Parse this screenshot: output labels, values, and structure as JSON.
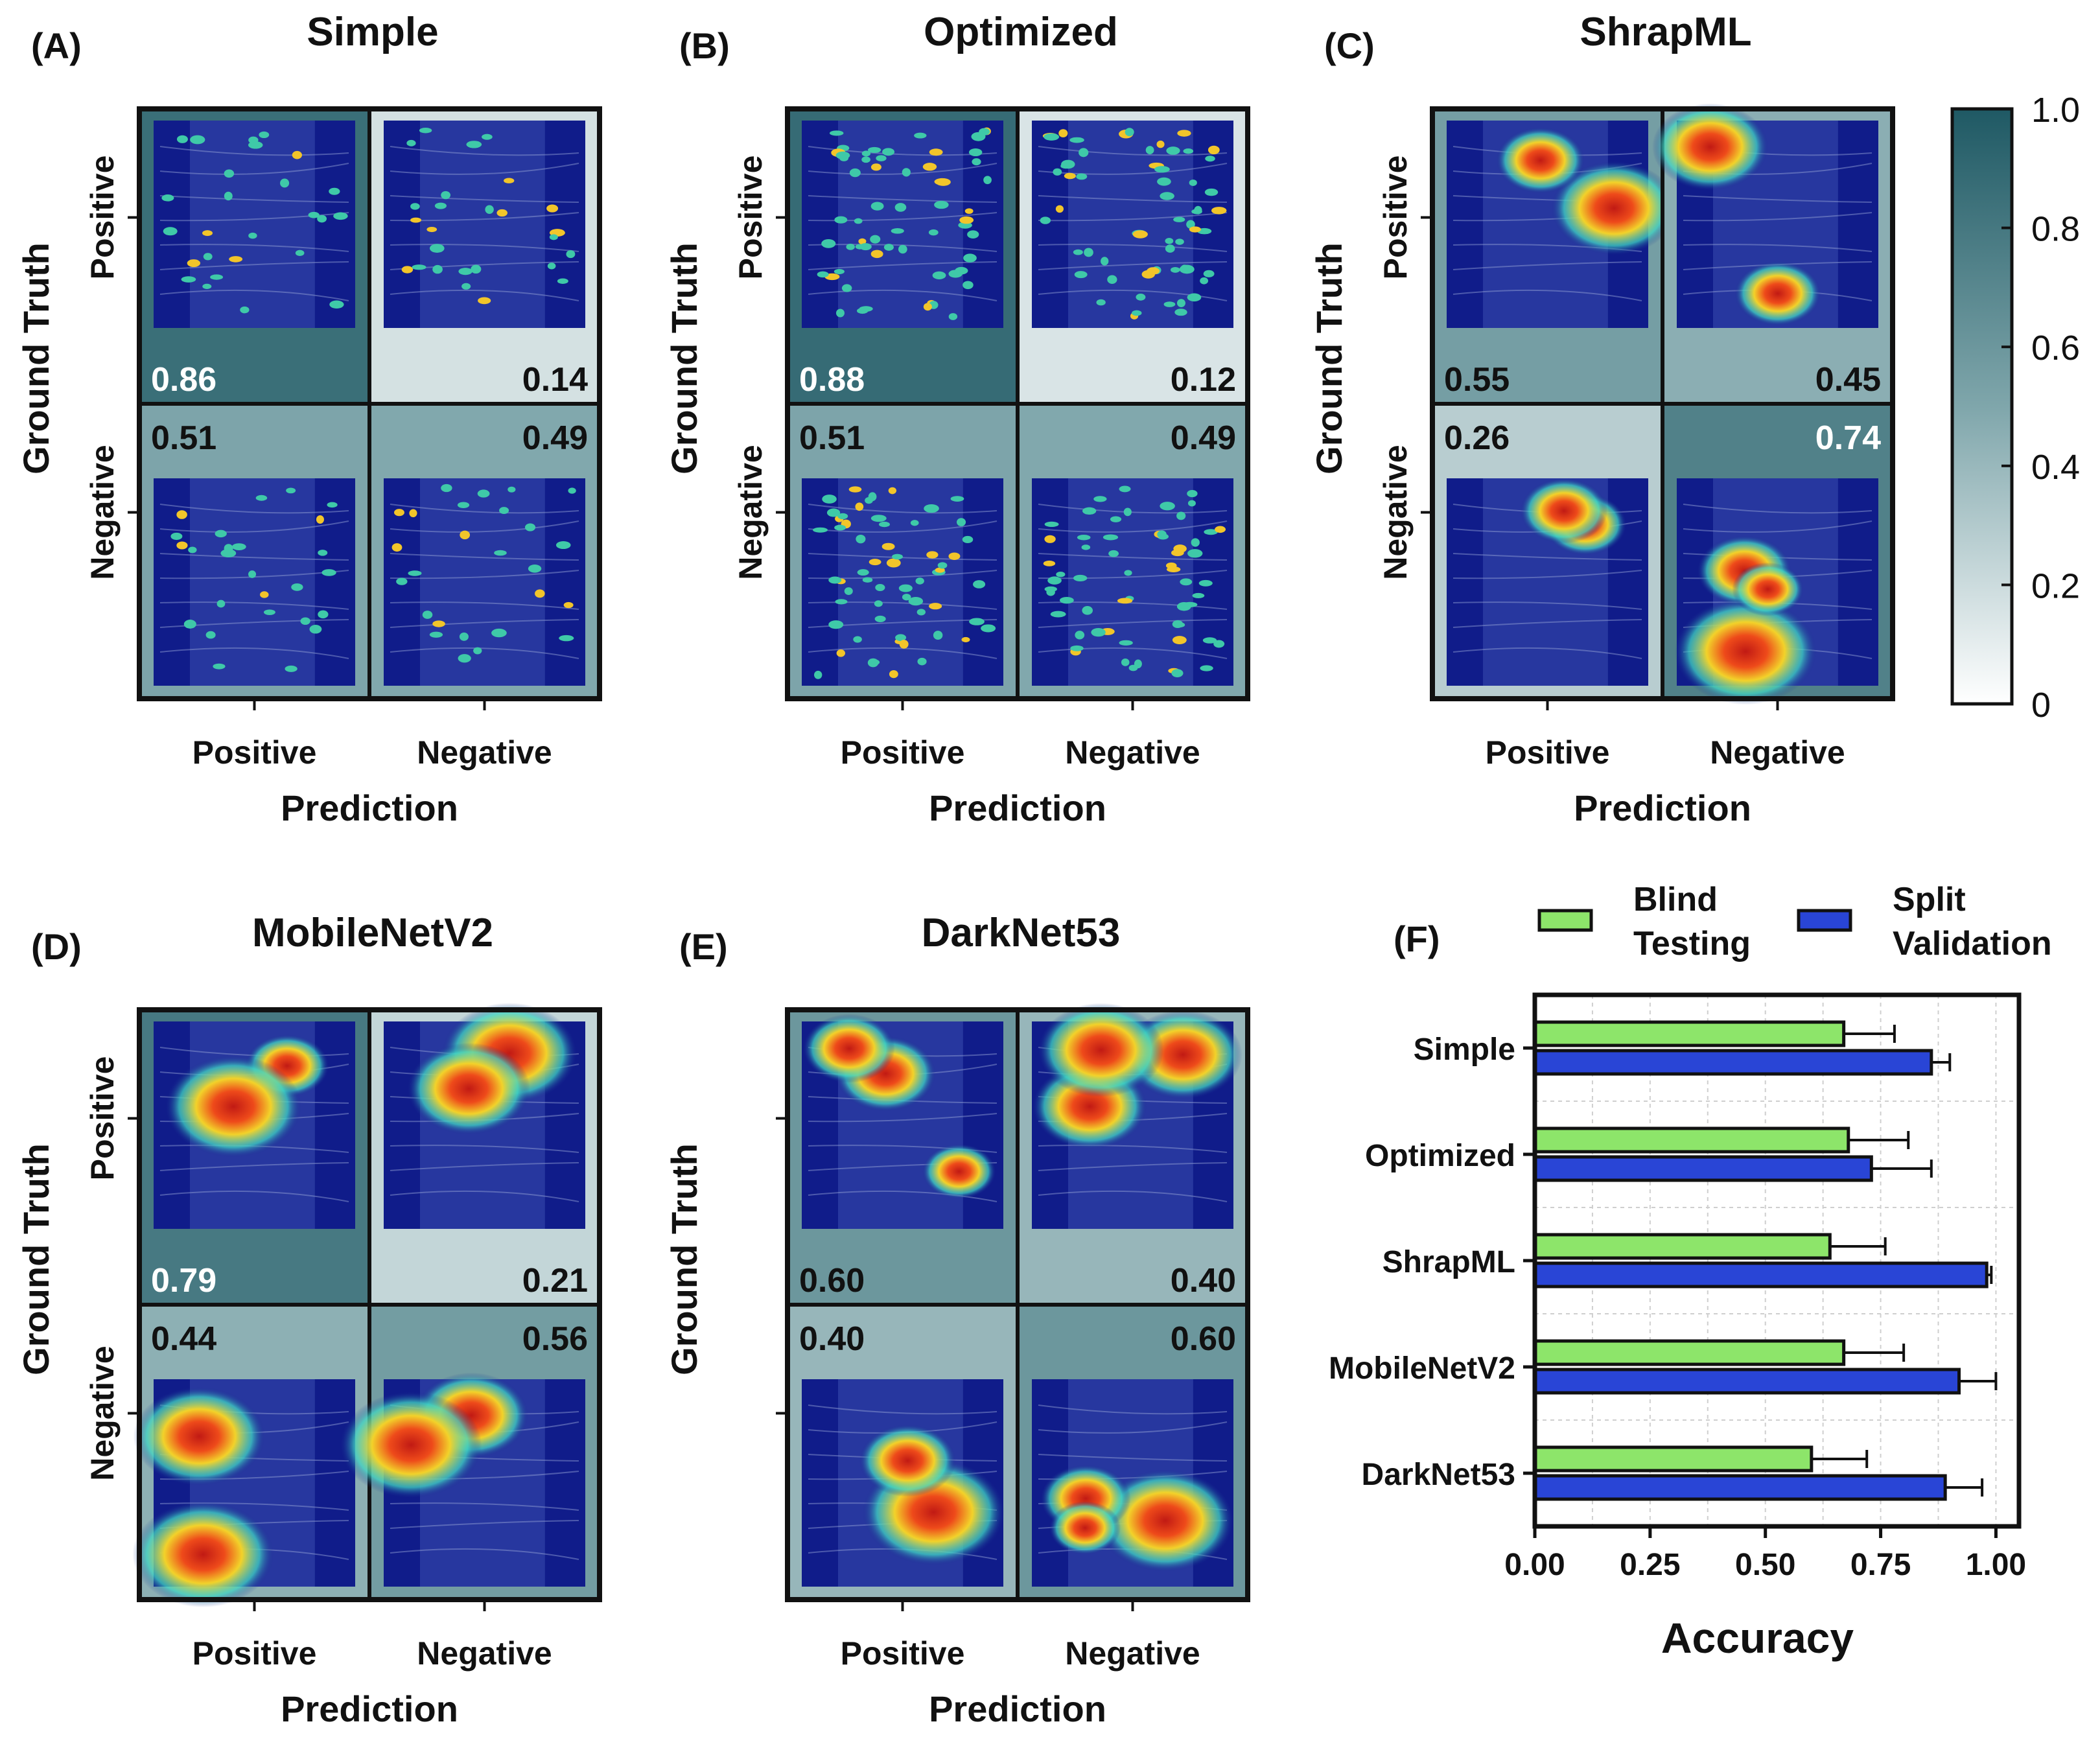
{
  "figure": {
    "colorbar": {
      "ticks": [
        "1.0",
        "0.8",
        "0.6",
        "0.4",
        "0.2",
        "0"
      ],
      "color_low": "#ffffff",
      "color_high": "#1f5964"
    },
    "panels": [
      {
        "letter": "(A)",
        "title": "Simple",
        "xlabel": "Prediction",
        "ylabel": "Ground Truth",
        "col_labels": [
          "Positive",
          "Negative"
        ],
        "row_labels": [
          "Positive",
          "Negative"
        ],
        "matrix": [
          [
            "0.86",
            "0.14"
          ],
          [
            "0.51",
            "0.49"
          ]
        ],
        "heatmaps": [
          "sparse",
          "sparse",
          "sparse",
          "sparse"
        ]
      },
      {
        "letter": "(B)",
        "title": "Optimized",
        "xlabel": "Prediction",
        "ylabel": "Ground Truth",
        "col_labels": [
          "Positive",
          "Negative"
        ],
        "row_labels": [
          "Positive",
          "Negative"
        ],
        "matrix": [
          [
            "0.88",
            "0.12"
          ],
          [
            "0.51",
            "0.49"
          ]
        ],
        "heatmaps": [
          "sparse",
          "sparse",
          "sparse",
          "sparse"
        ]
      },
      {
        "letter": "(C)",
        "title": "ShrapML",
        "xlabel": "Prediction",
        "ylabel": "Ground Truth",
        "col_labels": [
          "Positive",
          "Negative"
        ],
        "row_labels": [
          "Positive",
          "Negative"
        ],
        "matrix": [
          [
            "0.55",
            "0.45"
          ],
          [
            "0.26",
            "0.74"
          ]
        ],
        "heatmaps": [
          "blob",
          "blob",
          "blob",
          "blob"
        ]
      },
      {
        "letter": "(D)",
        "title": "MobileNetV2",
        "xlabel": "Prediction",
        "ylabel": "Ground Truth",
        "col_labels": [
          "Positive",
          "Negative"
        ],
        "row_labels": [
          "Positive",
          "Negative"
        ],
        "matrix": [
          [
            "0.79",
            "0.21"
          ],
          [
            "0.44",
            "0.56"
          ]
        ],
        "heatmaps": [
          "blob",
          "blob",
          "blob",
          "blob"
        ]
      },
      {
        "letter": "(E)",
        "title": "DarkNet53",
        "xlabel": "Prediction",
        "ylabel": "Ground Truth",
        "col_labels": [
          "Positive",
          "Negative"
        ],
        "row_labels": [
          "",
          ""
        ],
        "matrix": [
          [
            "0.60",
            "0.40"
          ],
          [
            "0.40",
            "0.60"
          ]
        ],
        "heatmaps": [
          "blob",
          "blob",
          "blob",
          "blob"
        ]
      }
    ]
  },
  "chart_data": {
    "type": "bar",
    "orientation": "horizontal",
    "letter": "(F)",
    "categories": [
      "Simple",
      "Optimized",
      "ShrapML",
      "MobileNetV2",
      "DarkNet53"
    ],
    "series": [
      {
        "name": "Blind Testing",
        "label_lines": [
          "Blind",
          "Testing"
        ],
        "color": "#8de56a",
        "values": [
          0.67,
          0.68,
          0.64,
          0.67,
          0.6
        ],
        "errors": [
          0.11,
          0.13,
          0.12,
          0.13,
          0.12
        ]
      },
      {
        "name": "Split Validation",
        "label_lines": [
          "Split",
          "Validation"
        ],
        "color": "#2945d6",
        "values": [
          0.86,
          0.73,
          0.98,
          0.92,
          0.89
        ],
        "errors": [
          0.04,
          0.13,
          0.01,
          0.08,
          0.08
        ]
      }
    ],
    "xlabel": "Accuracy",
    "xlim": [
      0,
      1.05
    ],
    "xticks": [
      "0.00",
      "0.25",
      "0.50",
      "0.75",
      "1.00"
    ],
    "grid": true,
    "legend": "top"
  }
}
